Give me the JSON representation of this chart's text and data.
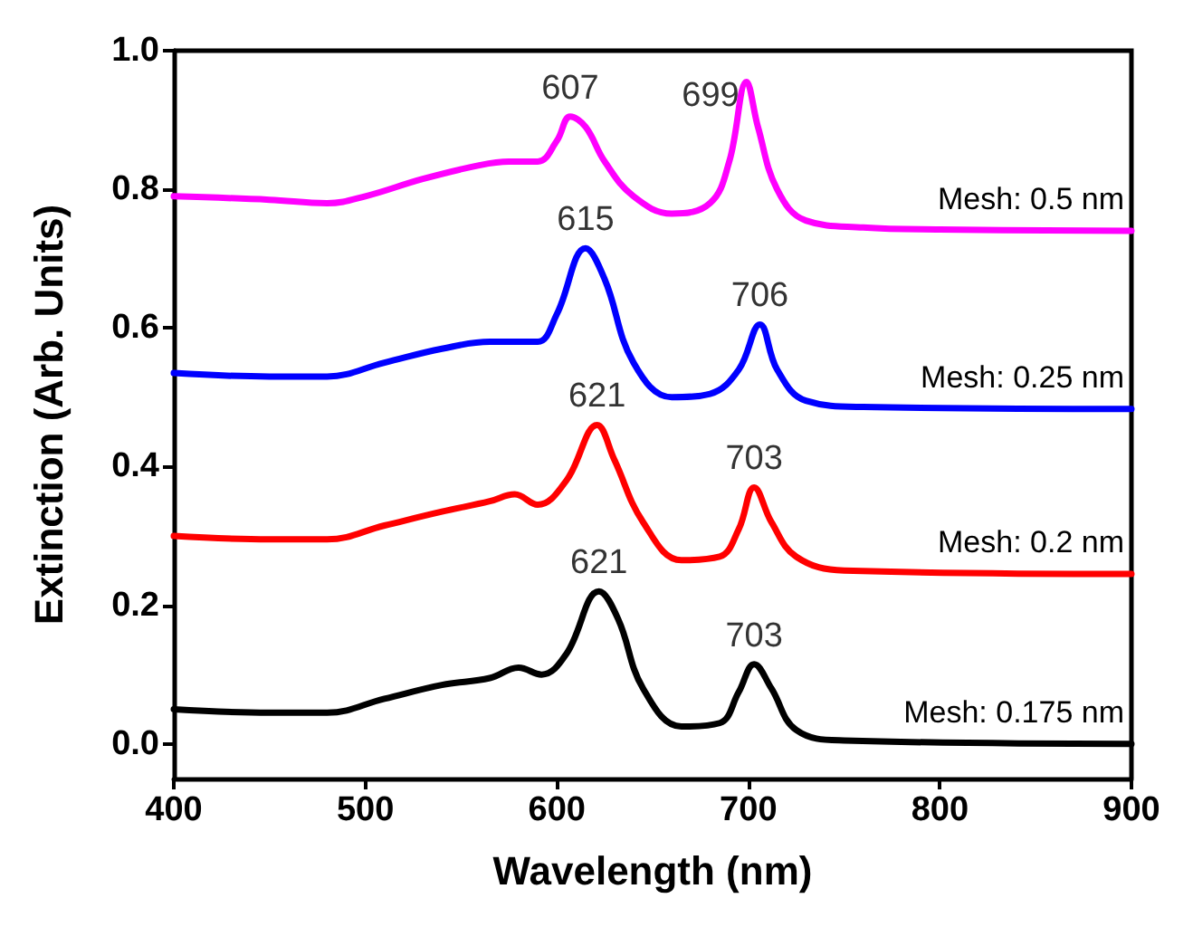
{
  "chart_data": {
    "type": "line",
    "xlabel": "Wavelength (nm)",
    "ylabel": "Extinction (Arb. Units)",
    "xlim": [
      400,
      900
    ],
    "xticks": [
      400,
      500,
      600,
      700,
      800,
      900
    ],
    "ylim": [
      -0.05,
      1.0
    ],
    "yticks": [
      {
        "value": 0,
        "label": "0.0"
      },
      {
        "value": 0.2,
        "label": "0.2"
      },
      {
        "value": 0.4,
        "label": "0.4"
      },
      {
        "value": 0.6,
        "label": "0.6"
      },
      {
        "value": 0.8,
        "label": "0.8"
      },
      {
        "value": 1,
        "label": "1.0"
      }
    ],
    "grid": false,
    "legend": false,
    "marker": "none",
    "line_style": "solid",
    "series": [
      {
        "name": "Mesh: 0.5 nm",
        "color": "#ff00ff",
        "x": [
          400,
          450,
          480,
          500,
          530,
          560,
          575,
          590,
          600,
          607,
          615,
          625,
          640,
          660,
          680,
          690,
          699,
          705,
          715,
          730,
          760,
          800,
          900
        ],
        "values": [
          0.79,
          0.785,
          0.78,
          0.79,
          0.815,
          0.835,
          0.84,
          0.84,
          0.87,
          0.905,
          0.89,
          0.84,
          0.79,
          0.765,
          0.78,
          0.84,
          0.955,
          0.89,
          0.8,
          0.755,
          0.745,
          0.742,
          0.74
        ]
      },
      {
        "name": "Mesh: 0.25 nm",
        "color": "#0000ff",
        "x": [
          400,
          450,
          480,
          510,
          540,
          565,
          575,
          590,
          600,
          615,
          625,
          640,
          660,
          680,
          695,
          706,
          715,
          730,
          760,
          900
        ],
        "values": [
          0.535,
          0.53,
          0.53,
          0.55,
          0.57,
          0.58,
          0.58,
          0.58,
          0.62,
          0.715,
          0.67,
          0.55,
          0.5,
          0.505,
          0.54,
          0.605,
          0.54,
          0.495,
          0.486,
          0.483
        ]
      },
      {
        "name": "Mesh: 0.2 nm",
        "color": "#ff0000",
        "x": [
          400,
          450,
          480,
          510,
          540,
          565,
          578,
          590,
          605,
          621,
          630,
          645,
          665,
          685,
          695,
          703,
          712,
          725,
          750,
          900
        ],
        "values": [
          0.3,
          0.295,
          0.295,
          0.315,
          0.335,
          0.35,
          0.36,
          0.345,
          0.38,
          0.46,
          0.41,
          0.32,
          0.265,
          0.27,
          0.31,
          0.37,
          0.32,
          0.27,
          0.25,
          0.245
        ]
      },
      {
        "name": "Mesh: 0.175 nm",
        "color": "#000000",
        "x": [
          400,
          450,
          480,
          510,
          540,
          565,
          580,
          592,
          605,
          622,
          632,
          645,
          665,
          685,
          695,
          703,
          712,
          725,
          750,
          900
        ],
        "values": [
          0.05,
          0.045,
          0.045,
          0.065,
          0.085,
          0.095,
          0.11,
          0.1,
          0.13,
          0.22,
          0.18,
          0.08,
          0.025,
          0.03,
          0.075,
          0.115,
          0.08,
          0.02,
          0.005,
          0.0
        ]
      }
    ],
    "annotations": [
      {
        "text": "607",
        "x": 607,
        "y": 0.905
      },
      {
        "text": "699",
        "x": 699,
        "y": 0.955
      },
      {
        "text": "615",
        "x": 615,
        "y": 0.715
      },
      {
        "text": "706",
        "x": 706,
        "y": 0.605
      },
      {
        "text": "621",
        "x": 621,
        "y": 0.46
      },
      {
        "text": "703",
        "x": 703,
        "y": 0.37
      },
      {
        "text": "621",
        "x": 622,
        "y": 0.22
      },
      {
        "text": "703",
        "x": 703,
        "y": 0.115
      }
    ]
  }
}
